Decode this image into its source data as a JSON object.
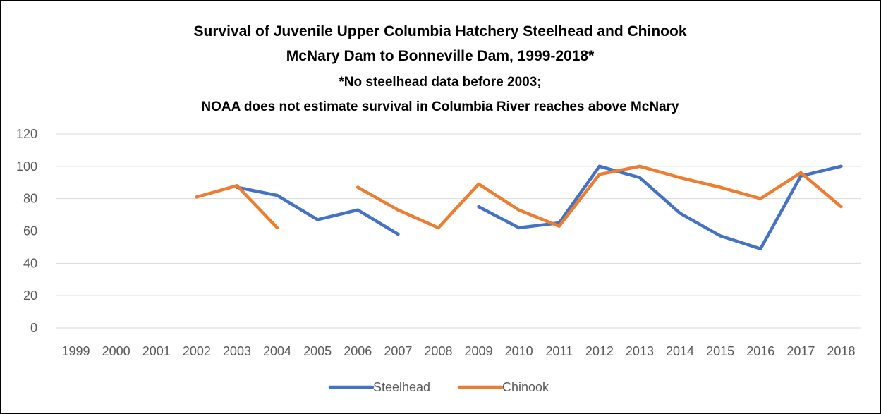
{
  "chart_data": {
    "type": "line",
    "title_lines": [
      "Survival of Juvenile Upper Columbia Hatchery Steelhead and Chinook",
      "McNary Dam to Bonneville Dam, 1999-2018*",
      "*No steelhead data before 2003;",
      "NOAA does not estimate survival in Columbia River reaches above McNary"
    ],
    "xlabel": "",
    "ylabel": "",
    "categories": [
      "1999",
      "2000",
      "2001",
      "2002",
      "2003",
      "2004",
      "2005",
      "2006",
      "2007",
      "2008",
      "2009",
      "2010",
      "2011",
      "2012",
      "2013",
      "2014",
      "2015",
      "2016",
      "2017",
      "2018"
    ],
    "ylim": [
      0,
      120
    ],
    "yticks": [
      0,
      20,
      40,
      60,
      80,
      100,
      120
    ],
    "grid": true,
    "legend_position": "bottom",
    "series": [
      {
        "name": "Steelhead",
        "color": "#4472C4",
        "values": [
          null,
          null,
          null,
          null,
          87,
          82,
          67,
          73,
          58,
          null,
          75,
          62,
          65,
          100,
          93,
          71,
          57,
          49,
          94,
          100
        ]
      },
      {
        "name": "Chinook",
        "color": "#ED7D31",
        "values": [
          null,
          null,
          null,
          81,
          88,
          62,
          null,
          87,
          73,
          62,
          89,
          73,
          63,
          95,
          100,
          93,
          87,
          80,
          96,
          75
        ]
      }
    ]
  }
}
